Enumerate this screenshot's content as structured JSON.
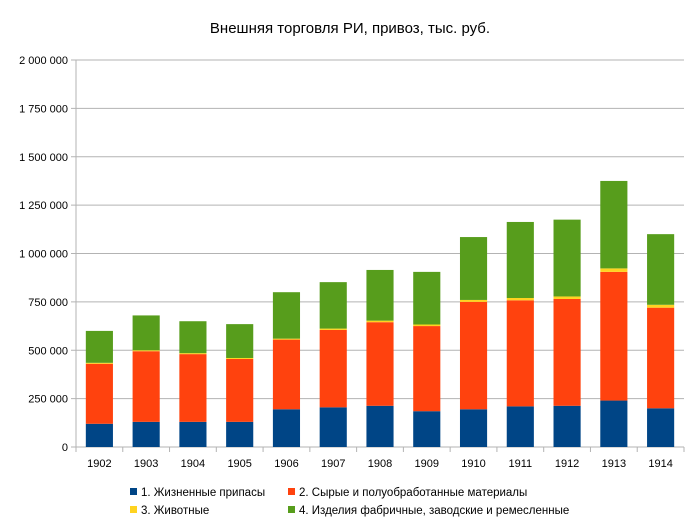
{
  "chart_data": {
    "type": "bar",
    "stacked": true,
    "title": "Внешняя торговля РИ, привоз, тыс. руб.",
    "categories": [
      "1902",
      "1903",
      "1904",
      "1905",
      "1906",
      "1907",
      "1908",
      "1909",
      "1910",
      "1911",
      "1912",
      "1913",
      "1914"
    ],
    "series": [
      {
        "name": "1. Жизненные припасы",
        "color": "#004586",
        "values": [
          120000,
          130000,
          130000,
          130000,
          195000,
          205000,
          213000,
          185000,
          195000,
          210000,
          213000,
          240000,
          200000
        ]
      },
      {
        "name": "2. Сырые и полуобработанные материалы",
        "color": "#ff420e",
        "values": [
          310000,
          365000,
          350000,
          325000,
          360000,
          400000,
          432000,
          440000,
          555000,
          548000,
          552000,
          665000,
          520000
        ]
      },
      {
        "name": "3. Животные",
        "color": "#ffd320",
        "values": [
          5000,
          5000,
          5000,
          5000,
          5000,
          7000,
          8000,
          8000,
          10000,
          12000,
          13000,
          18000,
          15000
        ]
      },
      {
        "name": "4. Изделия фабричные, заводские и ремесленные",
        "color": "#579d1c",
        "values": [
          165000,
          180000,
          165000,
          175000,
          240000,
          240000,
          262000,
          272000,
          325000,
          393000,
          397000,
          452000,
          365000
        ]
      }
    ],
    "ylim": [
      0,
      2000000
    ],
    "yticks": [
      0,
      250000,
      500000,
      750000,
      1000000,
      1250000,
      1500000,
      1750000,
      2000000
    ],
    "ytick_labels": [
      "0",
      "250 000",
      "500 000",
      "750 000",
      "1 000 000",
      "1 250 000",
      "1 500 000",
      "1 750 000",
      "2 000 000"
    ],
    "grid": true,
    "legend_position": "bottom"
  }
}
